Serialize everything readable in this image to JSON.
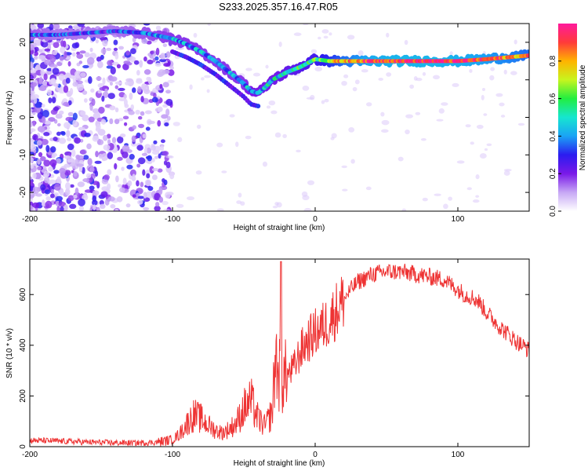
{
  "title": "S233.2025.357.16.47.R05",
  "chart_data": [
    {
      "type": "heatmap",
      "name": "spectrogram",
      "xlabel": "Height of straight line (km)",
      "ylabel": "Frequency (Hz)",
      "xlim": [
        -200,
        150
      ],
      "ylim": [
        -25,
        25
      ],
      "xticks": [
        -200,
        -100,
        0,
        100
      ],
      "yticks": [
        -20,
        -10,
        0,
        10,
        20
      ],
      "ridge": {
        "x": [
          -200,
          -180,
          -160,
          -140,
          -120,
          -100,
          -90,
          -80,
          -70,
          -60,
          -50,
          -45,
          -40,
          -35,
          -30,
          -20,
          -10,
          0,
          10,
          20,
          40,
          60,
          80,
          100,
          120,
          150
        ],
        "freq": [
          22,
          22,
          22.5,
          23,
          22.5,
          21,
          19.5,
          17.5,
          15,
          12,
          9,
          7,
          6.5,
          8,
          10,
          12,
          13.5,
          15.5,
          15,
          15,
          15,
          15,
          15,
          15,
          15.5,
          16.5
        ],
        "amplitude": [
          0.35,
          0.3,
          0.3,
          0.3,
          0.35,
          0.4,
          0.4,
          0.4,
          0.4,
          0.4,
          0.4,
          0.45,
          0.45,
          0.45,
          0.45,
          0.5,
          0.55,
          0.6,
          0.7,
          0.8,
          0.92,
          0.95,
          0.95,
          0.93,
          0.88,
          0.8
        ]
      },
      "colorbar": {
        "label": "Normalized spectral amplitude",
        "range": [
          0,
          1
        ],
        "ticks": [
          "0.0",
          "0.2",
          "0.4",
          "0.6",
          "0.8"
        ],
        "colors": [
          "#ffffff",
          "#c7a8f5",
          "#7a19e8",
          "#2b1cf0",
          "#1aa3f5",
          "#16e6d0",
          "#22ee40",
          "#c7f51e",
          "#ffb300",
          "#ff3a3a",
          "#ff1a9c"
        ]
      }
    },
    {
      "type": "line",
      "name": "snr",
      "xlabel": "Height of straight line (km)",
      "ylabel": "SNR (10 * v/v)",
      "xlim": [
        -200,
        150
      ],
      "ylim": [
        0,
        740
      ],
      "xticks": [
        -200,
        -100,
        0,
        100
      ],
      "yticks": [
        0,
        200,
        400,
        600
      ],
      "color": "#ee3333",
      "x": [
        -200,
        -180,
        -160,
        -140,
        -120,
        -110,
        -100,
        -95,
        -90,
        -85,
        -80,
        -75,
        -70,
        -65,
        -60,
        -55,
        -50,
        -45,
        -40,
        -35,
        -30,
        -28,
        -26,
        -24,
        -20,
        -15,
        -10,
        -5,
        0,
        5,
        10,
        15,
        20,
        25,
        30,
        40,
        50,
        60,
        70,
        80,
        90,
        100,
        105,
        110,
        115,
        120,
        125,
        130,
        140,
        150
      ],
      "y": [
        25,
        22,
        18,
        15,
        15,
        18,
        28,
        50,
        90,
        125,
        110,
        85,
        65,
        55,
        70,
        95,
        150,
        180,
        110,
        80,
        140,
        350,
        300,
        260,
        280,
        310,
        380,
        420,
        450,
        470,
        500,
        540,
        580,
        620,
        650,
        680,
        690,
        690,
        680,
        670,
        660,
        620,
        600,
        590,
        570,
        530,
        500,
        470,
        420,
        380
      ],
      "spike": {
        "x": -24,
        "y": 730
      }
    }
  ]
}
